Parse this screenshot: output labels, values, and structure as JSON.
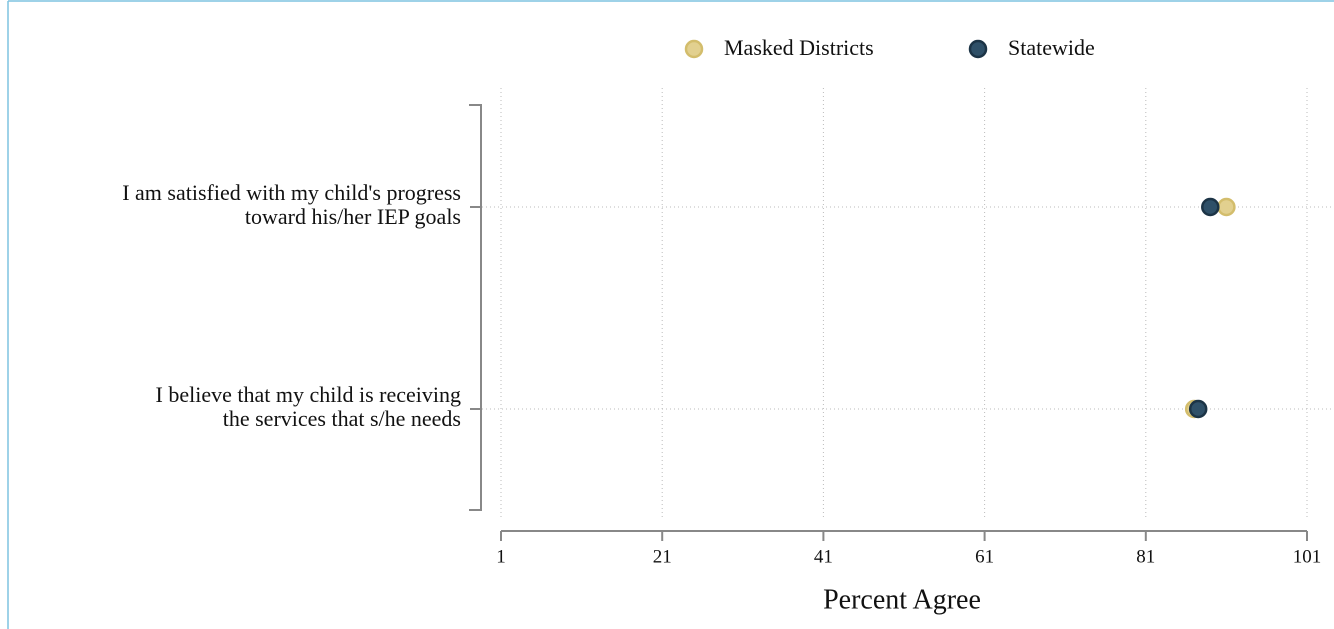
{
  "chart_data": {
    "type": "dot",
    "categories": [
      [
        "I am satisfied with my child's progress",
        "toward his/her IEP goals"
      ],
      [
        "I believe that my child is receiving",
        "the services that s/he needs"
      ]
    ],
    "series": [
      {
        "name": "Masked Districts",
        "color": "#e2d08f",
        "stroke": "#d3bd6c",
        "values": [
          91,
          87
        ]
      },
      {
        "name": "Statewide",
        "color": "#2f5068",
        "stroke": "#1c3446",
        "values": [
          89,
          87.5
        ]
      }
    ],
    "x_label": "Percent Agree",
    "xlim": [
      1,
      101
    ],
    "xticks": [
      1,
      21,
      41,
      61,
      81,
      101
    ],
    "grid": true,
    "legend": "top"
  }
}
